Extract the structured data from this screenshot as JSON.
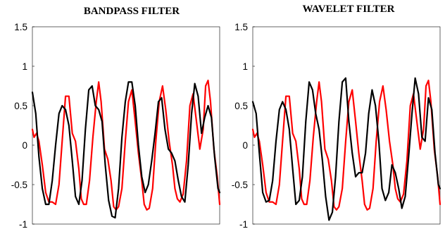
{
  "colors": {
    "series_red": "#ff0000",
    "series_black": "#000000"
  },
  "chart_data": [
    {
      "type": "line",
      "title": "BANDPASS FILTER",
      "xlabel": "",
      "ylabel": "",
      "xlim": [
        0,
        100
      ],
      "ylim": [
        -1,
        1.5
      ],
      "yticks": [
        -1,
        -0.5,
        0,
        0.5,
        1,
        1.5
      ],
      "ytick_labels": [
        "-1",
        "-0.5",
        "0",
        "0.5",
        "1",
        "1.5"
      ],
      "grid": false,
      "series": [
        {
          "color": "#ff0000",
          "x": [
            0,
            0.9,
            2.2,
            3.5,
            5.3,
            7.1,
            8.8,
            10.6,
            12.4,
            14.2,
            15.9,
            17.7,
            19.5,
            21.3,
            23,
            24.8,
            26.1,
            27.4,
            28.8,
            30.5,
            32.3,
            34.1,
            35.4,
            36.7,
            38.5,
            40.3,
            42,
            43.4,
            44.7,
            46,
            47.8,
            49.6,
            51.3,
            53.1,
            54.9,
            56.6,
            58.4,
            59.7,
            61.1,
            62.4,
            64.2,
            65.9,
            67.7,
            69.5,
            71.2,
            73,
            74.8,
            76.1,
            77.4,
            78.8,
            80.5,
            82.3,
            84.1,
            85.8,
            87.6,
            89.4,
            91.2,
            92.5,
            93.8,
            95.1,
            96.9,
            98.7,
            100
          ],
          "y": [
            0.2,
            0.1,
            0.15,
            0.05,
            -0.25,
            -0.6,
            -0.72,
            -0.72,
            -0.75,
            -0.5,
            0.05,
            0.62,
            0.62,
            0.15,
            0.05,
            -0.3,
            -0.68,
            -0.75,
            -0.75,
            -0.45,
            0.1,
            0.55,
            0.8,
            0.55,
            -0.05,
            -0.18,
            -0.45,
            -0.78,
            -0.82,
            -0.78,
            -0.55,
            0.05,
            0.55,
            0.7,
            0.3,
            -0.1,
            -0.45,
            -0.75,
            -0.82,
            -0.8,
            -0.55,
            0.05,
            0.55,
            0.75,
            0.45,
            0.05,
            -0.25,
            -0.55,
            -0.68,
            -0.72,
            -0.62,
            -0.2,
            0.5,
            0.65,
            0.3,
            -0.05,
            0.2,
            0.75,
            0.82,
            0.55,
            -0.05,
            -0.4,
            -0.75
          ]
        },
        {
          "color": "#000000",
          "x": [
            0,
            1.8,
            3.5,
            5.3,
            7.1,
            8.8,
            10.6,
            12.4,
            14.2,
            15.9,
            17.7,
            19.5,
            21.3,
            23,
            24.8,
            26.5,
            28.3,
            30.1,
            31.9,
            33.6,
            35.4,
            37.2,
            38.9,
            40.7,
            42.5,
            44.2,
            46,
            47.8,
            49.6,
            51.3,
            53.1,
            54.9,
            56.6,
            58.4,
            60.2,
            61.9,
            63.7,
            65.5,
            67.3,
            69,
            70.8,
            72.6,
            74.3,
            76.1,
            77.9,
            79.6,
            81.4,
            83.2,
            85,
            86.7,
            88.5,
            90.3,
            92,
            93.8,
            95.6,
            97.3,
            99.1,
            100
          ],
          "y": [
            0.67,
            0.4,
            -0.15,
            -0.55,
            -0.75,
            -0.75,
            -0.45,
            0.0,
            0.4,
            0.5,
            0.45,
            0.25,
            -0.2,
            -0.65,
            -0.75,
            -0.45,
            0.2,
            0.7,
            0.75,
            0.5,
            0.45,
            0.3,
            -0.25,
            -0.7,
            -0.9,
            -0.92,
            -0.55,
            0.1,
            0.55,
            0.8,
            0.8,
            0.5,
            0.0,
            -0.4,
            -0.6,
            -0.5,
            -0.2,
            0.15,
            0.55,
            0.6,
            0.2,
            -0.05,
            -0.1,
            -0.2,
            -0.45,
            -0.65,
            -0.72,
            -0.25,
            0.4,
            0.78,
            0.62,
            0.15,
            0.35,
            0.5,
            0.35,
            -0.15,
            -0.55,
            -0.6
          ]
        }
      ]
    },
    {
      "type": "line",
      "title": "WAVELET FILTER",
      "xlabel": "",
      "ylabel": "",
      "xlim": [
        0,
        100
      ],
      "ylim": [
        -1,
        1.5
      ],
      "yticks": [
        -1,
        -0.5,
        0,
        0.5,
        1,
        1.5
      ],
      "ytick_labels": [
        "-1",
        "-0.5",
        "0",
        "0.5",
        "1",
        "1.5"
      ],
      "grid": false,
      "series": [
        {
          "color": "#ff0000",
          "x": [
            0,
            0.9,
            2.2,
            3.5,
            5.3,
            7.1,
            8.8,
            10.6,
            12.4,
            14.2,
            15.9,
            17.7,
            19.5,
            21.3,
            23,
            24.8,
            26.1,
            27.4,
            28.8,
            30.5,
            32.3,
            34.1,
            35.4,
            36.7,
            38.5,
            40.3,
            42,
            43.4,
            44.7,
            46,
            47.8,
            49.6,
            51.3,
            53.1,
            54.9,
            56.6,
            58.4,
            59.7,
            61.1,
            62.4,
            64.2,
            65.9,
            67.7,
            69.5,
            71.2,
            73,
            74.8,
            76.1,
            77.4,
            78.8,
            80.5,
            82.3,
            84.1,
            85.8,
            87.6,
            89.4,
            91.2,
            92.5,
            93.8,
            95.1,
            96.9,
            98.7,
            100
          ],
          "y": [
            0.2,
            0.1,
            0.15,
            0.05,
            -0.25,
            -0.6,
            -0.72,
            -0.72,
            -0.75,
            -0.5,
            0.05,
            0.62,
            0.62,
            0.15,
            0.05,
            -0.3,
            -0.68,
            -0.75,
            -0.75,
            -0.45,
            0.1,
            0.55,
            0.8,
            0.55,
            -0.05,
            -0.18,
            -0.45,
            -0.78,
            -0.82,
            -0.78,
            -0.55,
            0.05,
            0.55,
            0.7,
            0.3,
            -0.1,
            -0.45,
            -0.75,
            -0.82,
            -0.8,
            -0.55,
            0.05,
            0.55,
            0.75,
            0.45,
            0.05,
            -0.25,
            -0.55,
            -0.68,
            -0.72,
            -0.62,
            -0.2,
            0.5,
            0.65,
            0.3,
            -0.05,
            0.2,
            0.75,
            0.82,
            0.55,
            -0.05,
            -0.4,
            -0.75
          ]
        },
        {
          "color": "#000000",
          "x": [
            0,
            1.8,
            3.5,
            5.3,
            7.1,
            8.8,
            10.6,
            12.4,
            14.2,
            15.9,
            17.7,
            19.5,
            21.3,
            23,
            24.8,
            26.5,
            28.3,
            30.1,
            31.9,
            33.6,
            35.4,
            37.2,
            38.9,
            40.7,
            42.5,
            44.2,
            46,
            47.8,
            49.6,
            51.3,
            53.1,
            54.9,
            56.6,
            58.4,
            60.2,
            61.9,
            63.7,
            65.5,
            67.3,
            69,
            70.8,
            72.6,
            74.3,
            76.1,
            77.9,
            79.6,
            81.4,
            83.2,
            85,
            86.7,
            88.5,
            90.3,
            92,
            93.8,
            95.6,
            97.3,
            99.1,
            100
          ],
          "y": [
            0.55,
            0.4,
            -0.1,
            -0.6,
            -0.72,
            -0.7,
            -0.45,
            0.05,
            0.45,
            0.55,
            0.45,
            0.2,
            -0.3,
            -0.75,
            -0.7,
            -0.4,
            0.3,
            0.8,
            0.7,
            0.4,
            0.2,
            -0.2,
            -0.65,
            -0.95,
            -0.85,
            -0.4,
            0.3,
            0.8,
            0.85,
            0.3,
            -0.1,
            -0.4,
            -0.35,
            -0.35,
            -0.1,
            0.4,
            0.7,
            0.5,
            0.05,
            -0.55,
            -0.7,
            -0.6,
            -0.25,
            -0.35,
            -0.55,
            -0.8,
            -0.65,
            -0.15,
            0.4,
            0.85,
            0.65,
            0.1,
            0.05,
            0.6,
            0.45,
            -0.1,
            -0.5,
            -0.55
          ]
        }
      ]
    }
  ]
}
